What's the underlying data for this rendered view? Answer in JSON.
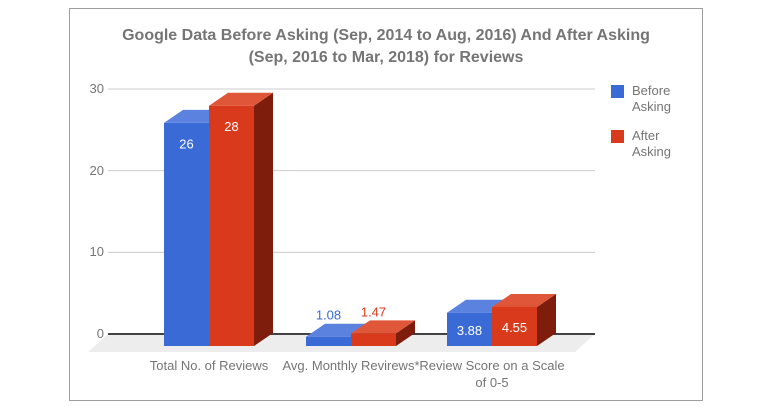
{
  "chart_data": {
    "type": "bar",
    "variant": "3d-column",
    "title": "Google Data Before Asking (Sep, 2014  to Aug, 2016) And After Asking (Sep, 2016 to Mar, 2018) for Reviews",
    "categories": [
      "Total No. of Reviews",
      "Avg. Monthly Revirews*",
      "Review Score on a Scale of 0-5"
    ],
    "series": [
      {
        "name": "Before Asking",
        "values": [
          26,
          1.08,
          3.88
        ],
        "labels": [
          "26",
          "1.08",
          "3.88"
        ],
        "color": "#3A6AD6",
        "top_color": "#5B82DF",
        "side_color": "#24478F"
      },
      {
        "name": "After Asking",
        "values": [
          28,
          1.47,
          4.55
        ],
        "labels": [
          "28",
          "1.47",
          "4.55"
        ],
        "color": "#D93A1B",
        "top_color": "#E05638",
        "side_color": "#7E1D0B"
      }
    ],
    "ylim": [
      0,
      30
    ],
    "yticks": [
      0,
      10,
      20,
      30
    ],
    "grid": true,
    "legend_position": "right",
    "xlabel": "",
    "ylabel": "",
    "colors": {
      "grid_line": "#cccccc",
      "axis_line": "#424242",
      "floor": "#ededed",
      "text": "#757575",
      "value_label_inside": "#ffffff"
    }
  }
}
